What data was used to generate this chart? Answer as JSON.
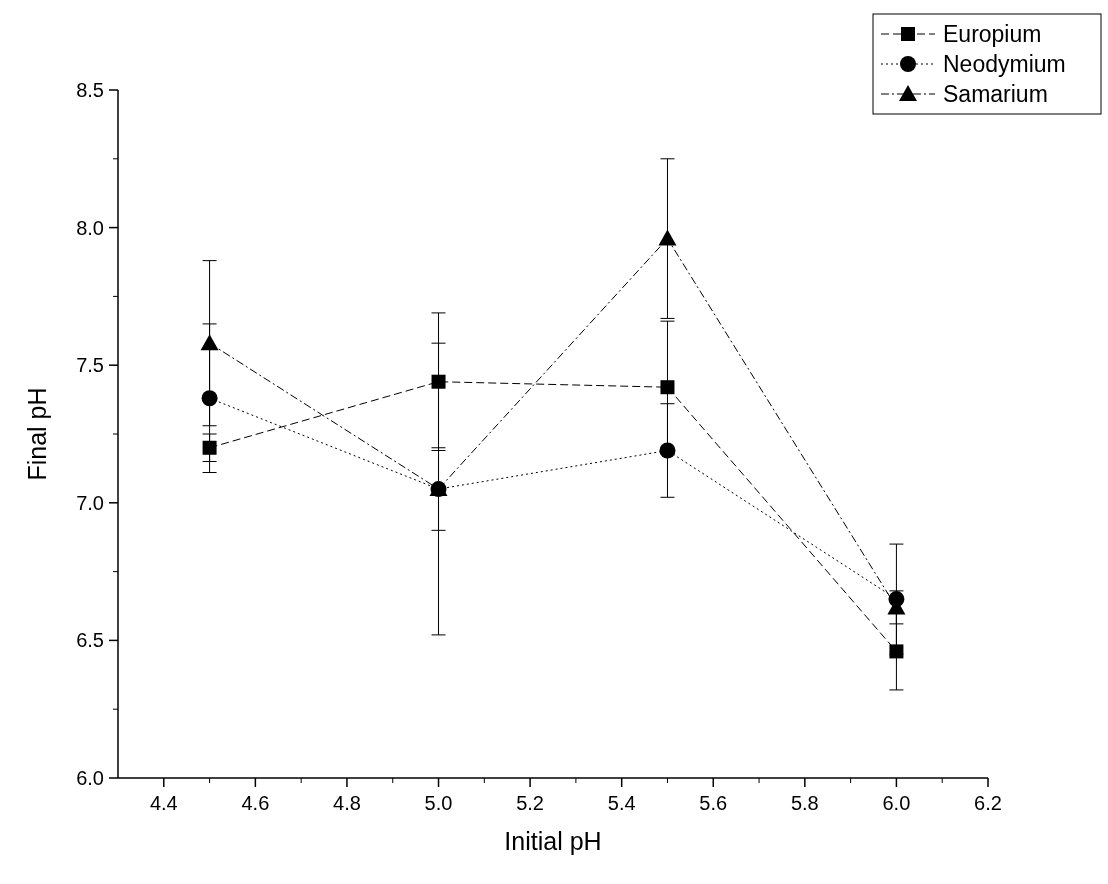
{
  "chart_data": {
    "type": "line",
    "xlabel": "Initial pH",
    "ylabel": "Final pH",
    "x": [
      4.5,
      5.0,
      5.5,
      6.0
    ],
    "xlim": [
      4.3,
      6.2
    ],
    "xticks": [
      4.4,
      4.6,
      4.8,
      {
        "value": 5.0,
        "label": "5.0"
      },
      5.2,
      5.4,
      5.6,
      5.8,
      {
        "value": 6.0,
        "label": "6.0"
      },
      6.2
    ],
    "ylim": [
      6.0,
      8.5
    ],
    "yticks": [
      {
        "value": 6.0,
        "label": "6.0"
      },
      6.5,
      {
        "value": 7.0,
        "label": "7.0"
      },
      7.5,
      {
        "value": 8.0,
        "label": "8.0"
      },
      8.5
    ],
    "grid": false,
    "legend": "top right",
    "series": [
      {
        "name": "Europium",
        "color": "#000000",
        "marker": "square",
        "line_style": "dashed",
        "values": [
          7.2,
          7.44,
          7.42,
          6.46
        ],
        "errors": [
          0.05,
          0.25,
          0.24,
          0.14
        ]
      },
      {
        "name": "Neodymium",
        "color": "#000000",
        "marker": "circle",
        "line_style": "dotted",
        "values": [
          7.38,
          7.05,
          7.19,
          6.65
        ],
        "errors": [
          0.27,
          0.15,
          0.17,
          0.2
        ]
      },
      {
        "name": "Samarium",
        "color": "#000000",
        "marker": "triangle",
        "line_style": "dashdot",
        "values": [
          7.58,
          7.05,
          7.96,
          6.62
        ],
        "errors": [
          0.3,
          0.53,
          0.29,
          0.06
        ]
      }
    ]
  }
}
